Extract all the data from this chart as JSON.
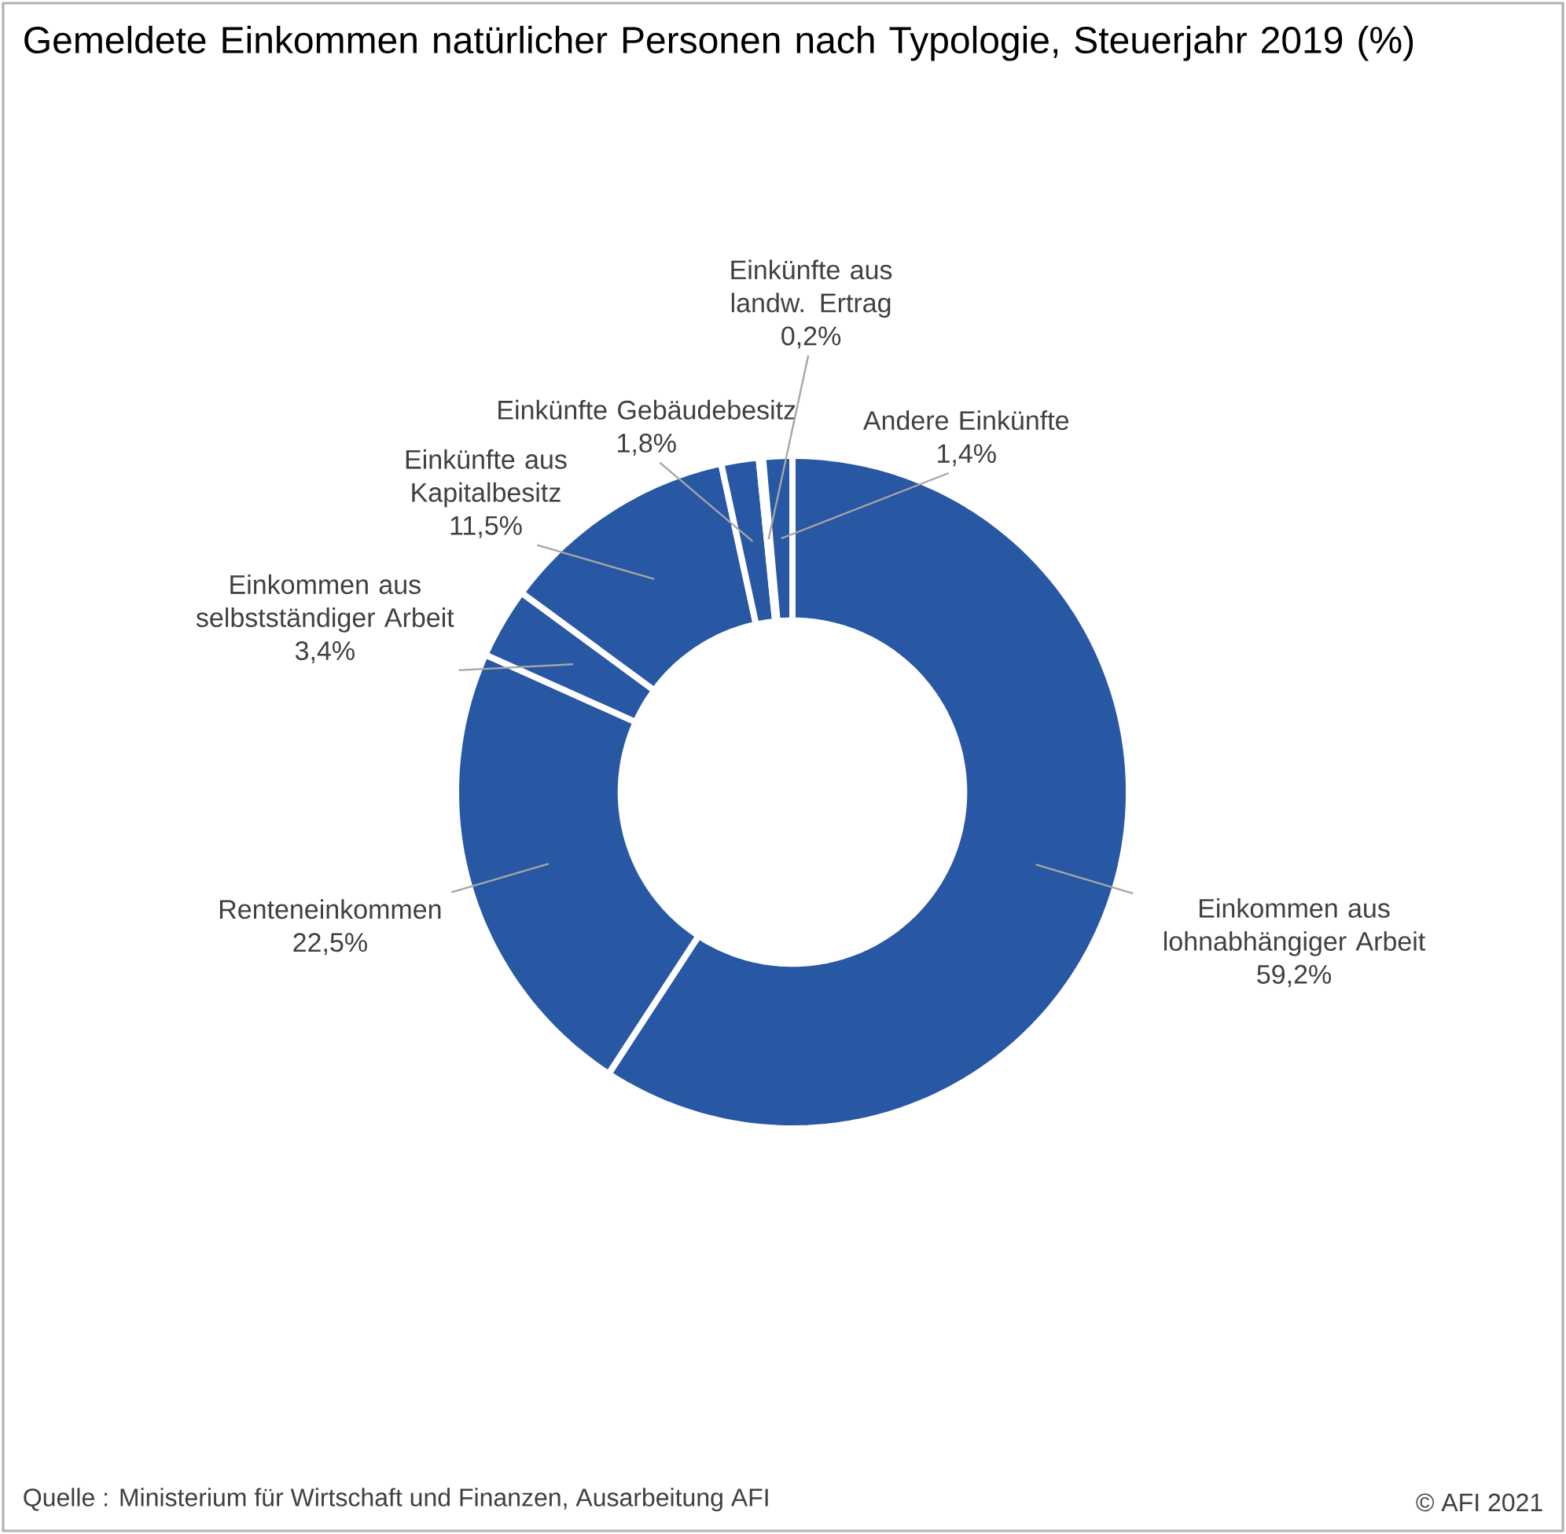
{
  "chart_data": {
    "type": "donut",
    "title": "Gemeldete Einkommen natürlicher Personen nach Typologie, Steuerjahr 2019 (%)",
    "categories": [
      "Einkommen aus lohnabhängiger Arbeit",
      "Renteneinkommen",
      "Einkommen aus selbstständiger Arbeit",
      "Einkünfte aus Kapitalbesitz",
      "Einkünfte Gebäudebesitz",
      "Einkünfte aus landw. Ertrag",
      "Andere Einkünfte"
    ],
    "values": [
      59.2,
      22.5,
      3.4,
      11.5,
      1.8,
      0.2,
      1.4
    ],
    "value_labels": [
      "59,2%",
      "22,5%",
      "3,4%",
      "11,5%",
      "1,8%",
      "0,2%",
      "1,4%"
    ],
    "colors": [
      "#2857a4",
      "#2857a4",
      "#2857a4",
      "#2857a4",
      "#2857a4",
      "#2857a4",
      "#2857a4"
    ],
    "annotations": [
      "Quelle : Ministerium für Wirtschaft und Finanzen, Ausarbeitung AFI",
      "© AFI 2021"
    ]
  }
}
